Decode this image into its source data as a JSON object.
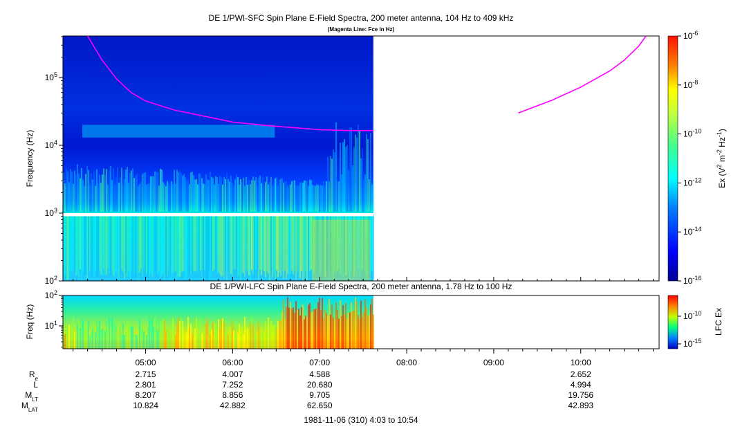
{
  "title": "DE 1/PWI-SFC  Spin Plane E-Field Spectra, 200 meter antenna, 104 Hz to 409 kHz",
  "subtitle": "(Magenta Line: Fce in Hz)",
  "colors": {
    "fce_line": "#ff00ff",
    "background": "#ffffff",
    "colormap": [
      "#00008f",
      "#0000ff",
      "#0080ff",
      "#00ffff",
      "#80ff80",
      "#ffff00",
      "#ff8000",
      "#ff0000"
    ]
  },
  "chart_data": [
    {
      "type": "heatmap",
      "name": "sfc",
      "title": "DE 1/PWI-SFC  Spin Plane E-Field Spectra, 200 meter antenna, 104 Hz to 409 kHz",
      "subtitle": "(Magenta Line: Fce in Hz)",
      "ylabel": "Frequency (Hz)",
      "yscale": "log",
      "ylim": [
        100,
        409000
      ],
      "yticks": [
        {
          "value": 100,
          "base": "10",
          "exp": "2"
        },
        {
          "value": 1000,
          "base": "10",
          "exp": "3"
        },
        {
          "value": 10000,
          "base": "10",
          "exp": "4"
        },
        {
          "value": 100000,
          "base": "10",
          "exp": "5"
        }
      ],
      "xlim": [
        "04:03",
        "10:54"
      ],
      "data_until": "07:37",
      "colorbar": {
        "label_parts": [
          "Ex (V",
          "2",
          " m",
          "-2",
          " Hz",
          "-1",
          ")"
        ],
        "scale": "log",
        "range": [
          1e-16,
          1e-06
        ],
        "ticks": [
          {
            "base": "10",
            "exp": "-6"
          },
          {
            "base": "10",
            "exp": "-8"
          },
          {
            "base": "10",
            "exp": "-10"
          },
          {
            "base": "10",
            "exp": "-12"
          },
          {
            "base": "10",
            "exp": "-14"
          },
          {
            "base": "10",
            "exp": "-16"
          }
        ]
      },
      "series": [
        {
          "name": "Fce",
          "x": [
            "04:20",
            "04:30",
            "04:40",
            "04:50",
            "05:00",
            "05:20",
            "05:40",
            "06:00",
            "06:30",
            "07:00",
            "07:20",
            "07:37"
          ],
          "values": [
            409000,
            180000,
            95000,
            60000,
            45000,
            33000,
            27000,
            22000,
            19000,
            17000,
            16500,
            16500
          ]
        },
        {
          "name": "Fce",
          "x": [
            "09:17",
            "09:40",
            "10:00",
            "10:20",
            "10:30",
            "10:40",
            "10:45"
          ],
          "values": [
            30000,
            46000,
            72000,
            125000,
            180000,
            290000,
            409000
          ]
        }
      ]
    },
    {
      "type": "heatmap",
      "name": "lfc",
      "title": "DE 1/PWI-LFC  Spin Plane E-Field Spectra, 200 meter antenna, 1.78 Hz to 100 Hz",
      "ylabel": "Freq (Hz)",
      "yscale": "log",
      "ylim": [
        1.78,
        100
      ],
      "yticks": [
        {
          "value": 10,
          "base": "10",
          "exp": "1"
        },
        {
          "value": 100,
          "base": "10",
          "exp": "2"
        }
      ],
      "xlim": [
        "04:03",
        "10:54"
      ],
      "data_until": "07:37",
      "colorbar": {
        "label": "LFC Ex",
        "scale": "log",
        "ticks": [
          {
            "base": "10",
            "exp": "-10"
          },
          {
            "base": "10",
            "exp": "-15"
          }
        ]
      }
    }
  ],
  "time_axis": {
    "ticks": [
      "05:00",
      "06:00",
      "07:00",
      "08:00",
      "09:00",
      "10:00"
    ],
    "range_label": "1981-11-06 (310) 4:03 to 10:54"
  },
  "ephemeris": {
    "rows": [
      {
        "label": "R",
        "sub": "e",
        "values": [
          "2.715",
          "4.007",
          "4.588",
          "",
          "",
          "2.652"
        ]
      },
      {
        "label": "L",
        "sub": "",
        "values": [
          "2.801",
          "7.252",
          "20.680",
          "",
          "",
          "4.994"
        ]
      },
      {
        "label": "M",
        "sub": "LT",
        "values": [
          "8.207",
          "8.856",
          "9.705",
          "",
          "",
          "19.756"
        ]
      },
      {
        "label": "M",
        "sub": "LAT",
        "values": [
          "10.824",
          "42.882",
          "62.650",
          "",
          "",
          "42.893"
        ]
      }
    ]
  }
}
